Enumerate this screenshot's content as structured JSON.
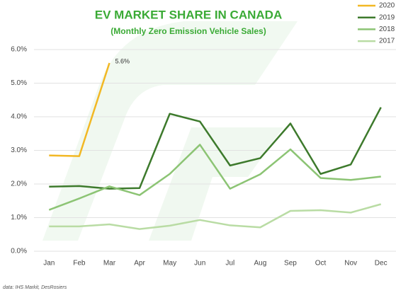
{
  "chart_data": {
    "type": "line",
    "title": "EV MARKET SHARE IN CANADA",
    "subtitle": "(Monthly Zero Emission Vehicle Sales)",
    "source": "data: IHS Markit, DesRosiers",
    "categories": [
      "Jan",
      "Feb",
      "Mar",
      "Apr",
      "May",
      "Jun",
      "Jul",
      "Aug",
      "Sep",
      "Oct",
      "Nov",
      "Dec"
    ],
    "series": [
      {
        "name": "2020",
        "color": "#f2b824",
        "values": [
          2.85,
          2.83,
          5.6,
          null,
          null,
          null,
          null,
          null,
          null,
          null,
          null,
          null
        ],
        "value_labels": [
          null,
          null,
          "5.6%",
          null,
          null,
          null,
          null,
          null,
          null,
          null,
          null,
          null
        ]
      },
      {
        "name": "2019",
        "color": "#3d7a2c",
        "values": [
          1.92,
          1.94,
          1.86,
          1.88,
          4.09,
          3.86,
          2.55,
          2.77,
          3.8,
          2.3,
          2.58,
          4.28
        ]
      },
      {
        "name": "2018",
        "color": "#8cc474",
        "values": [
          1.23,
          1.57,
          1.93,
          1.67,
          2.3,
          3.17,
          1.86,
          2.29,
          3.03,
          2.18,
          2.12,
          2.22
        ]
      },
      {
        "name": "2017",
        "color": "#b9dca4",
        "values": [
          0.74,
          0.74,
          0.8,
          0.66,
          0.76,
          0.93,
          0.77,
          0.71,
          1.2,
          1.22,
          1.15,
          1.4
        ]
      }
    ],
    "ylim": [
      0,
      6
    ],
    "yticks": [
      {
        "value": 0,
        "label": "0.0%"
      },
      {
        "value": 1,
        "label": "1.0%"
      },
      {
        "value": 2,
        "label": "2.0%"
      },
      {
        "value": 3,
        "label": "3.0%"
      },
      {
        "value": 4,
        "label": "4.0%"
      },
      {
        "value": 5,
        "label": "5.0%"
      },
      {
        "value": 6,
        "label": "6.0%"
      }
    ],
    "grid": true,
    "legend": "top-right"
  }
}
